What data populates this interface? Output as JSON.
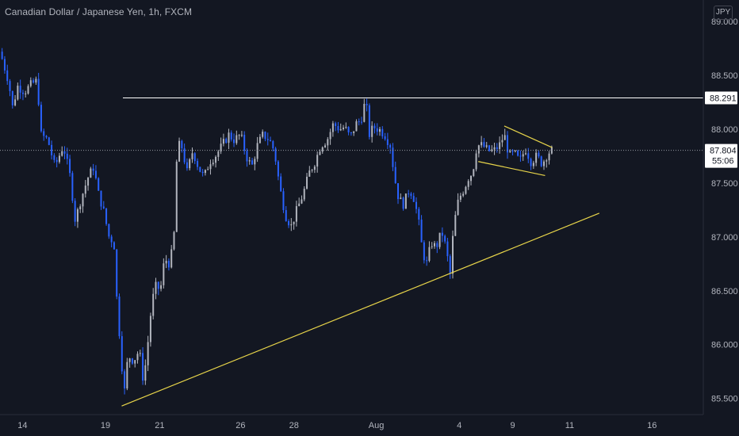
{
  "header": {
    "title": "Canadian Dollar / Japanese Yen, 1h, FXCM",
    "currency_label": "JPY"
  },
  "colors": {
    "background": "#131722",
    "up_candle": "#b2b5be",
    "down_candle": "#2962ff",
    "annotation_yellow": "#e8d54a",
    "level_line": "#ffffff",
    "text": "#b2b5be"
  },
  "chart_data": {
    "type": "candlestick",
    "y_axis": {
      "ylim": [
        85.35,
        89.2
      ],
      "ticks": [
        {
          "value": 89.0,
          "label": "89.000"
        },
        {
          "value": 88.5,
          "label": "88.500"
        },
        {
          "value": 88.0,
          "label": "88.000"
        },
        {
          "value": 87.5,
          "label": "87.500"
        },
        {
          "value": 87.0,
          "label": "87.000"
        },
        {
          "value": 86.5,
          "label": "86.500"
        },
        {
          "value": 86.0,
          "label": "86.000"
        },
        {
          "value": 85.5,
          "label": "85.500"
        }
      ]
    },
    "x_axis": {
      "ticks": [
        {
          "pos": 0.032,
          "label": "14"
        },
        {
          "pos": 0.15,
          "label": "19"
        },
        {
          "pos": 0.227,
          "label": "21"
        },
        {
          "pos": 0.342,
          "label": "26"
        },
        {
          "pos": 0.418,
          "label": "28"
        },
        {
          "pos": 0.535,
          "label": "Aug"
        },
        {
          "pos": 0.653,
          "label": "4"
        },
        {
          "pos": 0.729,
          "label": "9"
        },
        {
          "pos": 0.81,
          "label": "11"
        },
        {
          "pos": 0.927,
          "label": "16"
        }
      ]
    },
    "price_path": [
      [
        0.0,
        88.72
      ],
      [
        0.012,
        88.45
      ],
      [
        0.018,
        88.2
      ],
      [
        0.025,
        88.4
      ],
      [
        0.035,
        88.35
      ],
      [
        0.045,
        88.42
      ],
      [
        0.053,
        88.45
      ],
      [
        0.058,
        87.95
      ],
      [
        0.068,
        87.9
      ],
      [
        0.078,
        87.65
      ],
      [
        0.09,
        87.85
      ],
      [
        0.1,
        87.55
      ],
      [
        0.107,
        87.15
      ],
      [
        0.115,
        87.35
      ],
      [
        0.125,
        87.55
      ],
      [
        0.133,
        87.65
      ],
      [
        0.14,
        87.4
      ],
      [
        0.147,
        87.25
      ],
      [
        0.155,
        87.0
      ],
      [
        0.162,
        86.95
      ],
      [
        0.167,
        86.3
      ],
      [
        0.172,
        85.95
      ],
      [
        0.176,
        85.5
      ],
      [
        0.182,
        85.9
      ],
      [
        0.19,
        85.85
      ],
      [
        0.198,
        85.95
      ],
      [
        0.204,
        85.65
      ],
      [
        0.21,
        86.0
      ],
      [
        0.216,
        86.4
      ],
      [
        0.222,
        86.55
      ],
      [
        0.228,
        86.5
      ],
      [
        0.234,
        86.8
      ],
      [
        0.241,
        86.75
      ],
      [
        0.247,
        86.95
      ],
      [
        0.252,
        87.85
      ],
      [
        0.258,
        87.85
      ],
      [
        0.266,
        87.6
      ],
      [
        0.274,
        87.8
      ],
      [
        0.282,
        87.65
      ],
      [
        0.29,
        87.55
      ],
      [
        0.298,
        87.7
      ],
      [
        0.306,
        87.75
      ],
      [
        0.316,
        87.85
      ],
      [
        0.325,
        87.95
      ],
      [
        0.333,
        87.9
      ],
      [
        0.342,
        87.95
      ],
      [
        0.35,
        87.75
      ],
      [
        0.358,
        87.65
      ],
      [
        0.366,
        87.85
      ],
      [
        0.374,
        87.95
      ],
      [
        0.383,
        87.9
      ],
      [
        0.39,
        87.8
      ],
      [
        0.398,
        87.45
      ],
      [
        0.406,
        87.2
      ],
      [
        0.414,
        87.1
      ],
      [
        0.422,
        87.25
      ],
      [
        0.431,
        87.4
      ],
      [
        0.44,
        87.6
      ],
      [
        0.448,
        87.7
      ],
      [
        0.456,
        87.85
      ],
      [
        0.465,
        87.9
      ],
      [
        0.474,
        88.05
      ],
      [
        0.483,
        88.0
      ],
      [
        0.49,
        88.02
      ],
      [
        0.498,
        87.92
      ],
      [
        0.506,
        88.05
      ],
      [
        0.513,
        88.08
      ],
      [
        0.52,
        88.28
      ],
      [
        0.525,
        87.95
      ],
      [
        0.531,
        88.02
      ],
      [
        0.539,
        88.0
      ],
      [
        0.547,
        87.95
      ],
      [
        0.555,
        87.85
      ],
      [
        0.561,
        87.55
      ],
      [
        0.567,
        87.35
      ],
      [
        0.574,
        87.3
      ],
      [
        0.582,
        87.45
      ],
      [
        0.589,
        87.35
      ],
      [
        0.595,
        87.15
      ],
      [
        0.601,
        86.85
      ],
      [
        0.607,
        86.75
      ],
      [
        0.613,
        86.95
      ],
      [
        0.62,
        86.9
      ],
      [
        0.628,
        87.05
      ],
      [
        0.634,
        86.9
      ],
      [
        0.64,
        86.65
      ],
      [
        0.645,
        87.1
      ],
      [
        0.652,
        87.35
      ],
      [
        0.66,
        87.45
      ],
      [
        0.666,
        87.55
      ],
      [
        0.672,
        87.6
      ],
      [
        0.678,
        87.85
      ],
      [
        0.686,
        87.85
      ],
      [
        0.694,
        87.8
      ],
      [
        0.702,
        87.8
      ],
      [
        0.71,
        87.85
      ],
      [
        0.717,
        87.95
      ],
      [
        0.724,
        87.75
      ],
      [
        0.731,
        87.78
      ],
      [
        0.739,
        87.7
      ],
      [
        0.747,
        87.82
      ],
      [
        0.755,
        87.7
      ],
      [
        0.763,
        87.75
      ],
      [
        0.771,
        87.68
      ],
      [
        0.779,
        87.78
      ],
      [
        0.785,
        87.804
      ]
    ],
    "horizontal_level": {
      "value": 88.291,
      "label": "88.291"
    },
    "current_price": {
      "value": 87.804,
      "label": "87.804",
      "countdown": "55:06"
    },
    "trendlines": [
      {
        "name": "rising-support",
        "from": [
          0.173,
          85.43
        ],
        "to": [
          0.852,
          87.22
        ]
      },
      {
        "name": "triangle-upper",
        "from": [
          0.717,
          88.03
        ],
        "to": [
          0.785,
          87.83
        ]
      },
      {
        "name": "triangle-lower",
        "from": [
          0.68,
          87.7
        ],
        "to": [
          0.775,
          87.57
        ]
      }
    ]
  }
}
